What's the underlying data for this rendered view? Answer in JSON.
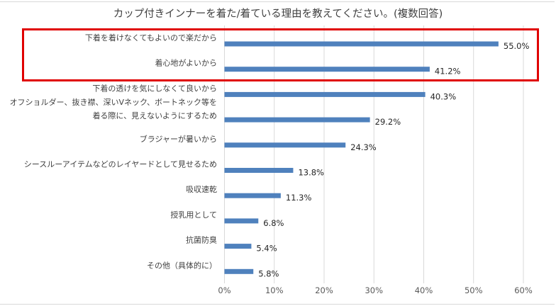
{
  "chart_data": {
    "type": "bar",
    "orientation": "horizontal",
    "title": "カップ付きインナーを着た/着ている理由を教えてください。(複数回答)",
    "categories": [
      [
        "下着を着けなくてもよいので楽だから"
      ],
      [
        "着心地がよいから"
      ],
      [
        "下着の透けを気にしなくて良いから"
      ],
      [
        "オフショルダー、抜き襟、深いVネック、ボートネック等を",
        "着る際に、見えないようにするため"
      ],
      [
        "ブラジャーが暑いから"
      ],
      [
        "シースルーアイテムなどのレイヤードとして見せるため"
      ],
      [
        "吸収速乾"
      ],
      [
        "授乳用として"
      ],
      [
        "抗菌防臭"
      ],
      [
        "その他（具体的に）"
      ]
    ],
    "values": [
      55.0,
      41.2,
      40.3,
      29.2,
      24.3,
      13.8,
      11.3,
      6.8,
      5.4,
      5.8
    ],
    "value_labels": [
      "55.0%",
      "41.2%",
      "40.3%",
      "29.2%",
      "24.3%",
      "13.8%",
      "11.3%",
      "6.8%",
      "5.4%",
      "5.8%"
    ],
    "xlim": [
      0,
      60
    ],
    "xticks": [
      0,
      10,
      20,
      30,
      40,
      50,
      60
    ],
    "xtick_labels": [
      "0%",
      "10%",
      "20%",
      "30%",
      "40%",
      "50%",
      "60%"
    ],
    "grid": "vertical",
    "bar_color": "#4f81bd",
    "highlight_color": "#e00000",
    "highlighted_categories": [
      0,
      1
    ]
  }
}
